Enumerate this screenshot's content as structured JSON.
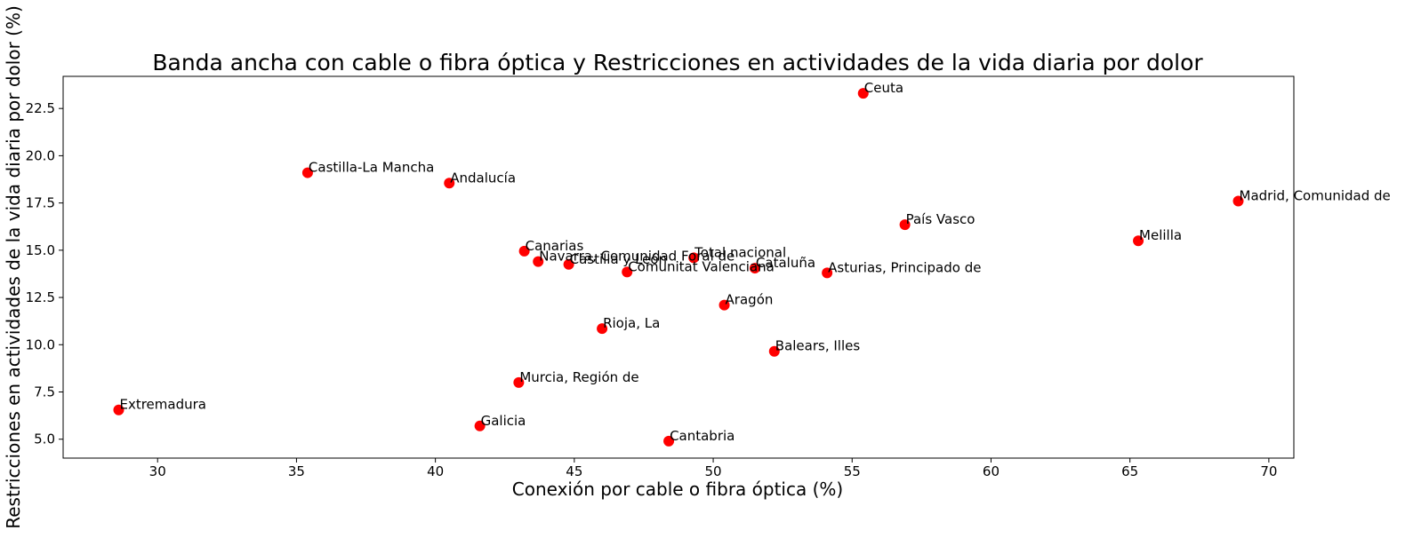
{
  "chart_data": {
    "type": "scatter",
    "title": "Banda ancha con cable o fibra óptica y Restricciones en actividades de la vida diaria por dolor",
    "xlabel": "Conexión por cable o fibra óptica (%)",
    "ylabel": "Restricciones en actividades de la vida diaria por dolor (%)",
    "xlim": [
      26.6,
      70.9
    ],
    "ylim": [
      4.0,
      24.2
    ],
    "xticks": [
      "30",
      "35",
      "40",
      "45",
      "50",
      "55",
      "60",
      "65",
      "70"
    ],
    "yticks": [
      "5.0",
      "7.5",
      "10.0",
      "12.5",
      "15.0",
      "17.5",
      "20.0",
      "22.5"
    ],
    "grid": false,
    "marker_color": "#ff0000",
    "points": [
      {
        "label": "Ceuta",
        "x": 55.4,
        "y": 23.3
      },
      {
        "label": "Castilla-La Mancha",
        "x": 35.4,
        "y": 19.1
      },
      {
        "label": "Andalucía",
        "x": 40.5,
        "y": 18.55
      },
      {
        "label": "Madrid, Comunidad de",
        "x": 68.9,
        "y": 17.6
      },
      {
        "label": "País Vasco",
        "x": 56.9,
        "y": 16.35
      },
      {
        "label": "Melilla",
        "x": 65.3,
        "y": 15.5
      },
      {
        "label": "Canarias",
        "x": 43.2,
        "y": 14.95
      },
      {
        "label": "Total nacional",
        "x": 49.3,
        "y": 14.6
      },
      {
        "label": "Navarra, Comunidad Foral de",
        "x": 43.7,
        "y": 14.4
      },
      {
        "label": "Castilla y León",
        "x": 44.8,
        "y": 14.25
      },
      {
        "label": "Cataluña",
        "x": 51.5,
        "y": 14.05
      },
      {
        "label": "Comunitat Valenciana",
        "x": 46.9,
        "y": 13.85
      },
      {
        "label": "Asturias, Principado de",
        "x": 54.1,
        "y": 13.8
      },
      {
        "label": "Aragón",
        "x": 50.4,
        "y": 12.1
      },
      {
        "label": "Rioja, La",
        "x": 46.0,
        "y": 10.85
      },
      {
        "label": "Balears, Illes",
        "x": 52.2,
        "y": 9.65
      },
      {
        "label": "Murcia, Región de",
        "x": 43.0,
        "y": 8.0
      },
      {
        "label": "Extremadura",
        "x": 28.6,
        "y": 6.55
      },
      {
        "label": "Galicia",
        "x": 41.6,
        "y": 5.7
      },
      {
        "label": "Cantabria",
        "x": 48.4,
        "y": 4.9
      }
    ]
  }
}
